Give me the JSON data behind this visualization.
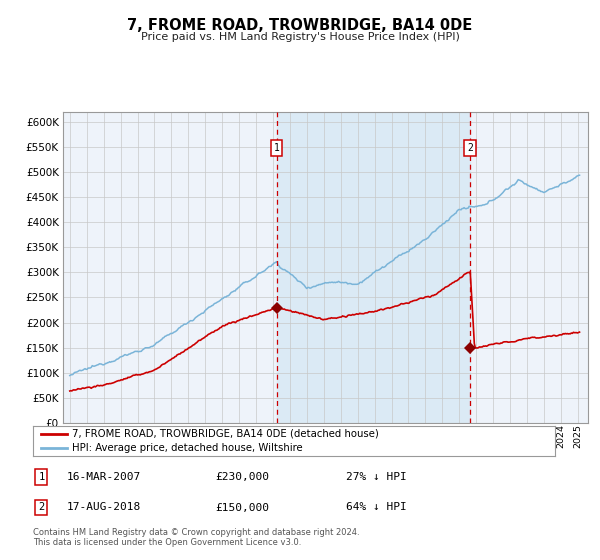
{
  "title": "7, FROME ROAD, TROWBRIDGE, BA14 0DE",
  "subtitle": "Price paid vs. HM Land Registry's House Price Index (HPI)",
  "legend_line1": "7, FROME ROAD, TROWBRIDGE, BA14 0DE (detached house)",
  "legend_line2": "HPI: Average price, detached house, Wiltshire",
  "annotation1": {
    "label": "1",
    "date": "16-MAR-2007",
    "price": 230000,
    "note": "27% ↓ HPI"
  },
  "annotation2": {
    "label": "2",
    "date": "17-AUG-2018",
    "price": 150000,
    "note": "64% ↓ HPI"
  },
  "footer": "Contains HM Land Registry data © Crown copyright and database right 2024.\nThis data is licensed under the Open Government Licence v3.0.",
  "hpi_color": "#7ab4d8",
  "price_color": "#cc0000",
  "hpi_fill_between_color": "#dbeaf5",
  "marker_color": "#8b0000",
  "dashed_line_color": "#cc0000",
  "background_color": "#ffffff",
  "plot_bg_color": "#eef3fa",
  "grid_color": "#c8c8c8",
  "border_color": "#999999",
  "ylim": [
    0,
    620000
  ],
  "yticks": [
    0,
    50000,
    100000,
    150000,
    200000,
    250000,
    300000,
    350000,
    400000,
    450000,
    500000,
    550000,
    600000
  ],
  "purchase1_year": 2007.21,
  "purchase2_year": 2018.63,
  "purchase1_price": 230000,
  "purchase2_price": 150000
}
